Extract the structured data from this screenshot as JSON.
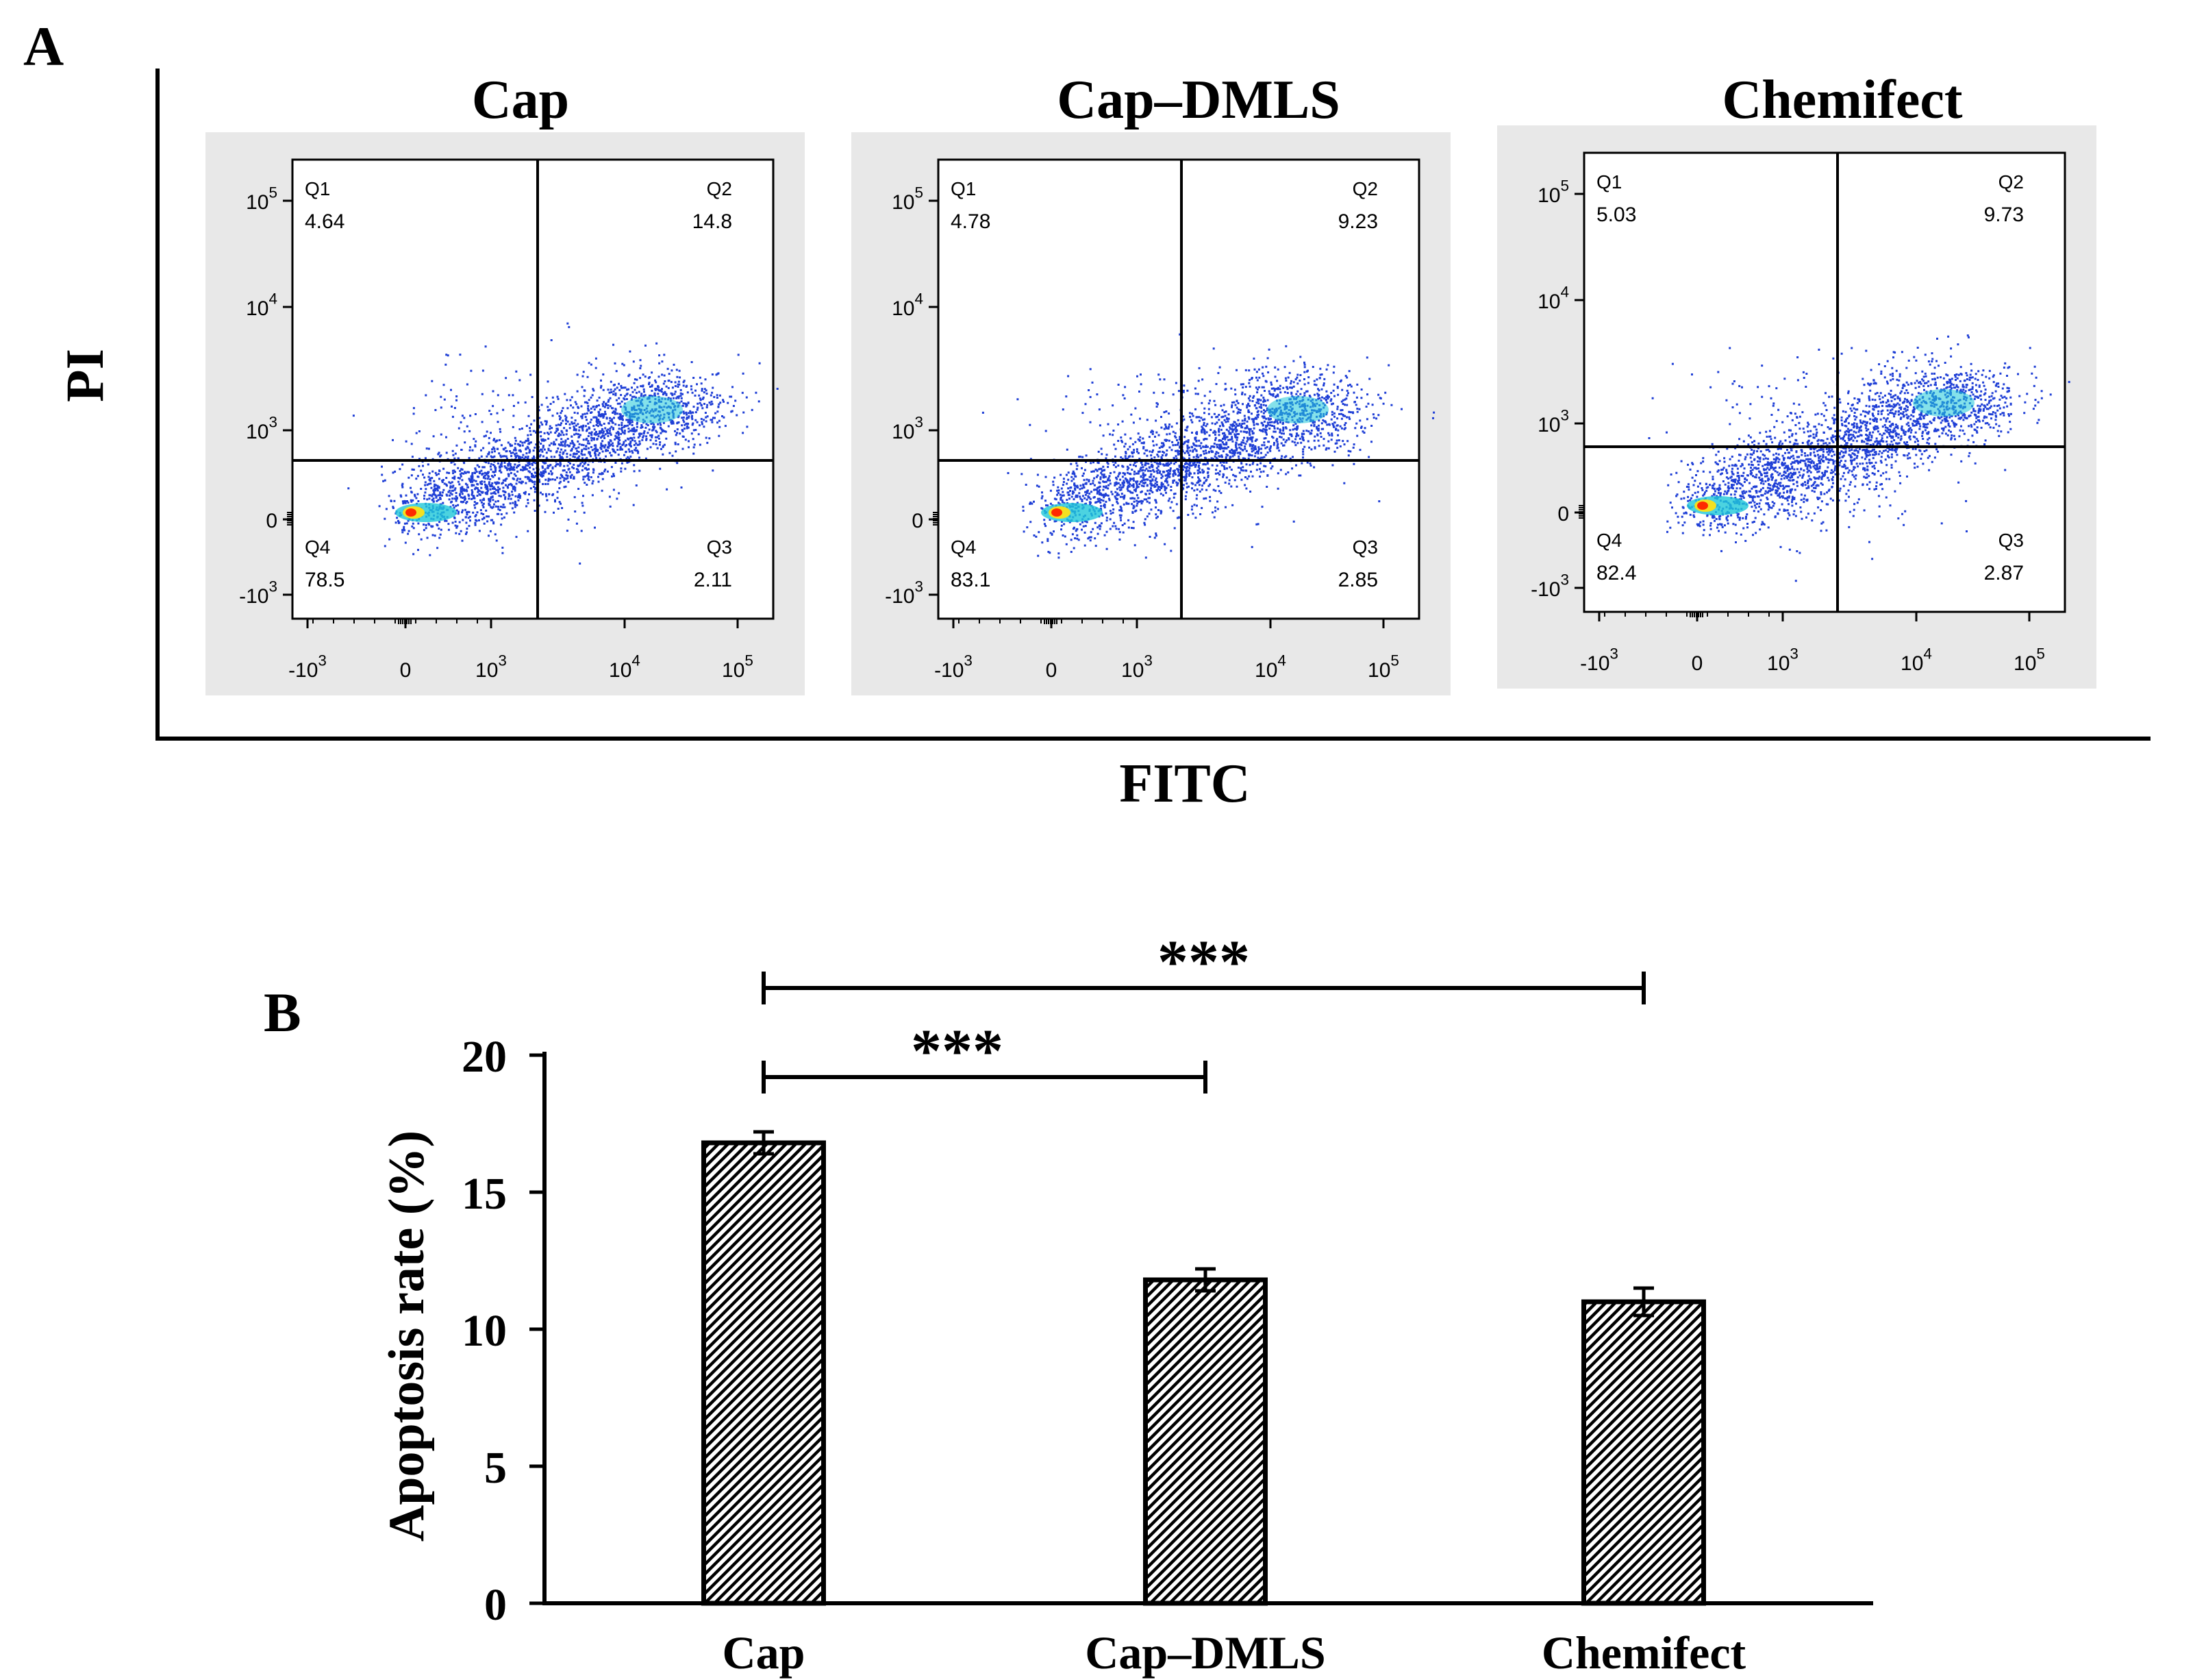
{
  "panel_a": {
    "label": "A",
    "y_axis_label": "PI",
    "x_axis_label": "FITC",
    "x_ticks": [
      {
        "base": "-10",
        "exp": "3"
      },
      {
        "base": "0",
        "exp": ""
      },
      {
        "base": "10",
        "exp": "3"
      },
      {
        "base": "10",
        "exp": "4"
      },
      {
        "base": "10",
        "exp": "5"
      }
    ],
    "y_ticks": [
      {
        "base": "10",
        "exp": "5"
      },
      {
        "base": "10",
        "exp": "4"
      },
      {
        "base": "10",
        "exp": "3"
      },
      {
        "base": "0",
        "exp": ""
      },
      {
        "base": "-10",
        "exp": "3"
      }
    ],
    "plots": [
      {
        "title": "Cap",
        "q1_label": "Q1",
        "q1": "4.64",
        "q2_label": "Q2",
        "q2": "14.8",
        "q3_label": "Q3",
        "q3": "2.11",
        "q4_label": "Q4",
        "q4": "78.5"
      },
      {
        "title": "Cap–DMLS",
        "q1_label": "Q1",
        "q1": "4.78",
        "q2_label": "Q2",
        "q2": "9.23",
        "q3_label": "Q3",
        "q3": "2.85",
        "q4_label": "Q4",
        "q4": "83.1"
      },
      {
        "title": "Chemifect",
        "q1_label": "Q1",
        "q1": "5.03",
        "q2_label": "Q2",
        "q2": "9.73",
        "q3_label": "Q3",
        "q3": "2.87",
        "q4_label": "Q4",
        "q4": "82.4"
      }
    ]
  },
  "panel_b": {
    "label": "B"
  },
  "chart_data": {
    "type": "bar",
    "title": "",
    "xlabel": "",
    "ylabel": "Apoptosis rate (%)",
    "categories": [
      "Cap",
      "Cap–DMLS",
      "Chemifect"
    ],
    "values": [
      16.8,
      11.8,
      11.0
    ],
    "errors": [
      0.4,
      0.4,
      0.5
    ],
    "ylim": [
      0,
      20
    ],
    "yticks": [
      0,
      5,
      10,
      15,
      20
    ],
    "significance": [
      {
        "from": 0,
        "to": 1,
        "label": "***"
      },
      {
        "from": 0,
        "to": 2,
        "label": "***"
      }
    ],
    "bar_fill": "hatched",
    "colors": {
      "axis": "#000000",
      "bar_edge": "#000000",
      "hatch": "#000000",
      "background": "#ffffff"
    }
  },
  "flow_colors": {
    "panel_bg": "#e8e8e8",
    "plot_bg": "#ffffff",
    "dots": "#1f3fd6",
    "dense": "#1fc8d8",
    "hot": "#ff2a00"
  }
}
